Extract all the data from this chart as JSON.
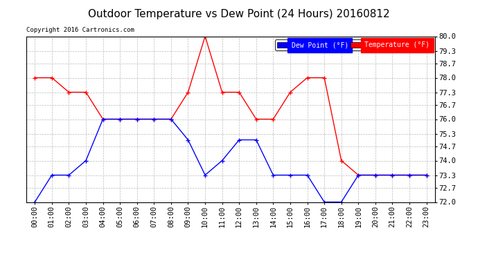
{
  "title": "Outdoor Temperature vs Dew Point (24 Hours) 20160812",
  "copyright": "Copyright 2016 Cartronics.com",
  "legend_labels": [
    "Dew Point (°F)",
    "Temperature (°F)"
  ],
  "legend_colors": [
    "blue",
    "red"
  ],
  "hours": [
    "00:00",
    "01:00",
    "02:00",
    "03:00",
    "04:00",
    "05:00",
    "06:00",
    "07:00",
    "08:00",
    "09:00",
    "10:00",
    "11:00",
    "12:00",
    "13:00",
    "14:00",
    "15:00",
    "16:00",
    "17:00",
    "18:00",
    "19:00",
    "20:00",
    "21:00",
    "22:00",
    "23:00"
  ],
  "temperature": [
    78.0,
    78.0,
    77.3,
    77.3,
    76.0,
    76.0,
    76.0,
    76.0,
    76.0,
    77.3,
    80.0,
    77.3,
    77.3,
    76.0,
    76.0,
    77.3,
    78.0,
    78.0,
    74.0,
    73.3,
    73.3,
    73.3,
    73.3,
    73.3
  ],
  "dew_point": [
    72.0,
    73.3,
    73.3,
    74.0,
    76.0,
    76.0,
    76.0,
    76.0,
    76.0,
    75.0,
    73.3,
    74.0,
    75.0,
    75.0,
    73.3,
    73.3,
    73.3,
    72.0,
    72.0,
    73.3,
    73.3,
    73.3,
    73.3,
    73.3
  ],
  "ylim": [
    72.0,
    80.0
  ],
  "yticks": [
    72.0,
    72.7,
    73.3,
    74.0,
    74.7,
    75.3,
    76.0,
    76.7,
    77.3,
    78.0,
    78.7,
    79.3,
    80.0
  ],
  "bg_color": "#ffffff",
  "grid_color": "#bbbbbb",
  "title_fontsize": 11,
  "tick_fontsize": 7.5,
  "temp_color": "red",
  "dew_color": "blue",
  "marker": "+"
}
